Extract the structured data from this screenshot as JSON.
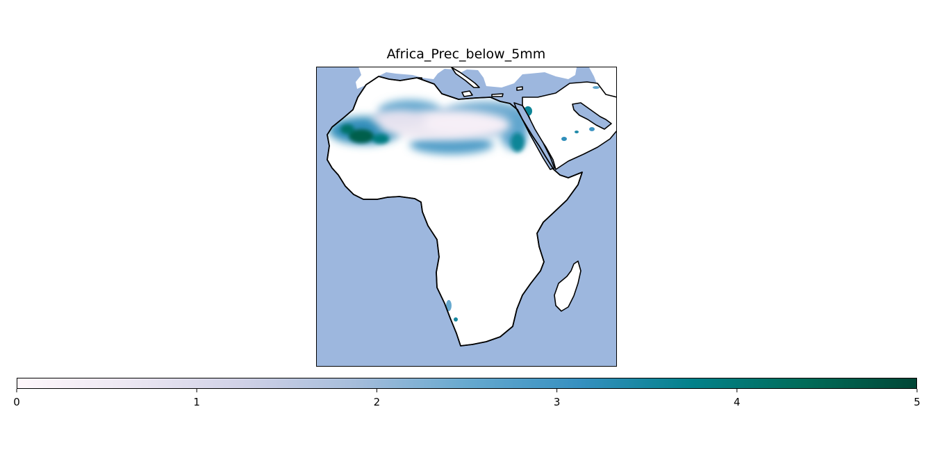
{
  "chart_data": {
    "type": "heatmap",
    "title": "Africa_Prec_below_5mm",
    "colorbar": {
      "orientation": "horizontal",
      "range": [
        0,
        5
      ],
      "ticks": [
        "0",
        "1",
        "2",
        "3",
        "4",
        "5"
      ],
      "colormap": "PuBuGn",
      "colors": [
        "#fff7fb",
        "#ece7f2",
        "#d0d1e6",
        "#a6bddb",
        "#67a9cf",
        "#3690c0",
        "#02818a",
        "#016c59",
        "#014636"
      ]
    },
    "map": {
      "region": "Africa",
      "ocean_color": "#9db7de",
      "land_color": "#ffffff",
      "coastline_color": "#000000"
    }
  }
}
